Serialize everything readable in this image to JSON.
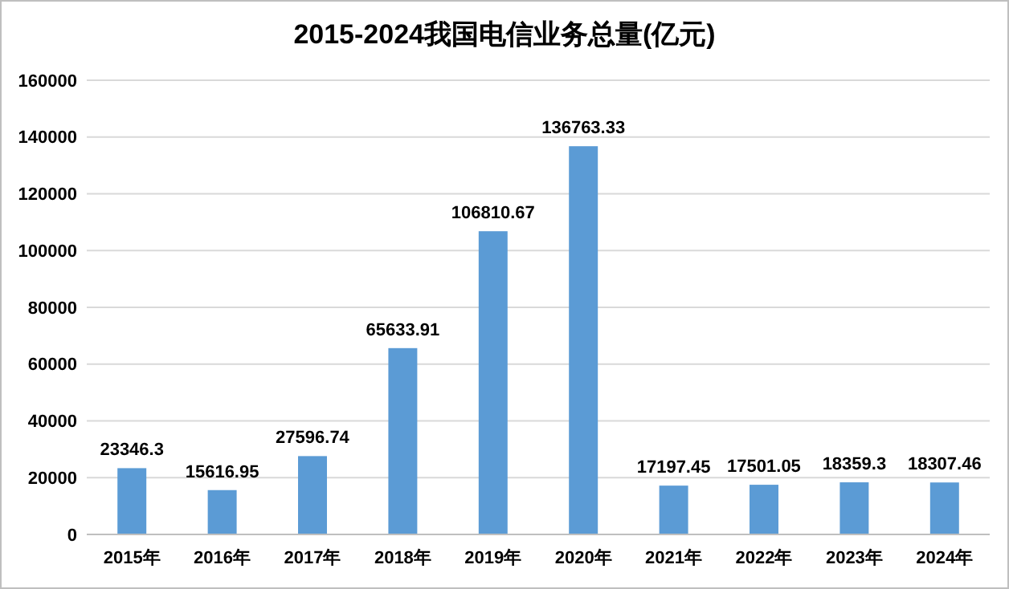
{
  "chart_data": {
    "type": "bar",
    "title": "2015-2024我国电信业务总量(亿元)",
    "categories": [
      "2015年",
      "2016年",
      "2017年",
      "2018年",
      "2019年",
      "2020年",
      "2021年",
      "2022年",
      "2023年",
      "2024年"
    ],
    "values": [
      23346.3,
      15616.95,
      27596.74,
      65633.91,
      106810.67,
      136763.33,
      17197.45,
      17501.05,
      18359.3,
      18307.46
    ],
    "value_labels": [
      "23346.3",
      "15616.95",
      "27596.74",
      "65633.91",
      "106810.67",
      "136763.33",
      "17197.45",
      "17501.05",
      "18359.3",
      "18307.46"
    ],
    "color": "#5b9bd5",
    "ylim": [
      0,
      160000
    ],
    "yticks": [
      0,
      20000,
      40000,
      60000,
      80000,
      100000,
      120000,
      140000,
      160000
    ],
    "grid": "y"
  }
}
